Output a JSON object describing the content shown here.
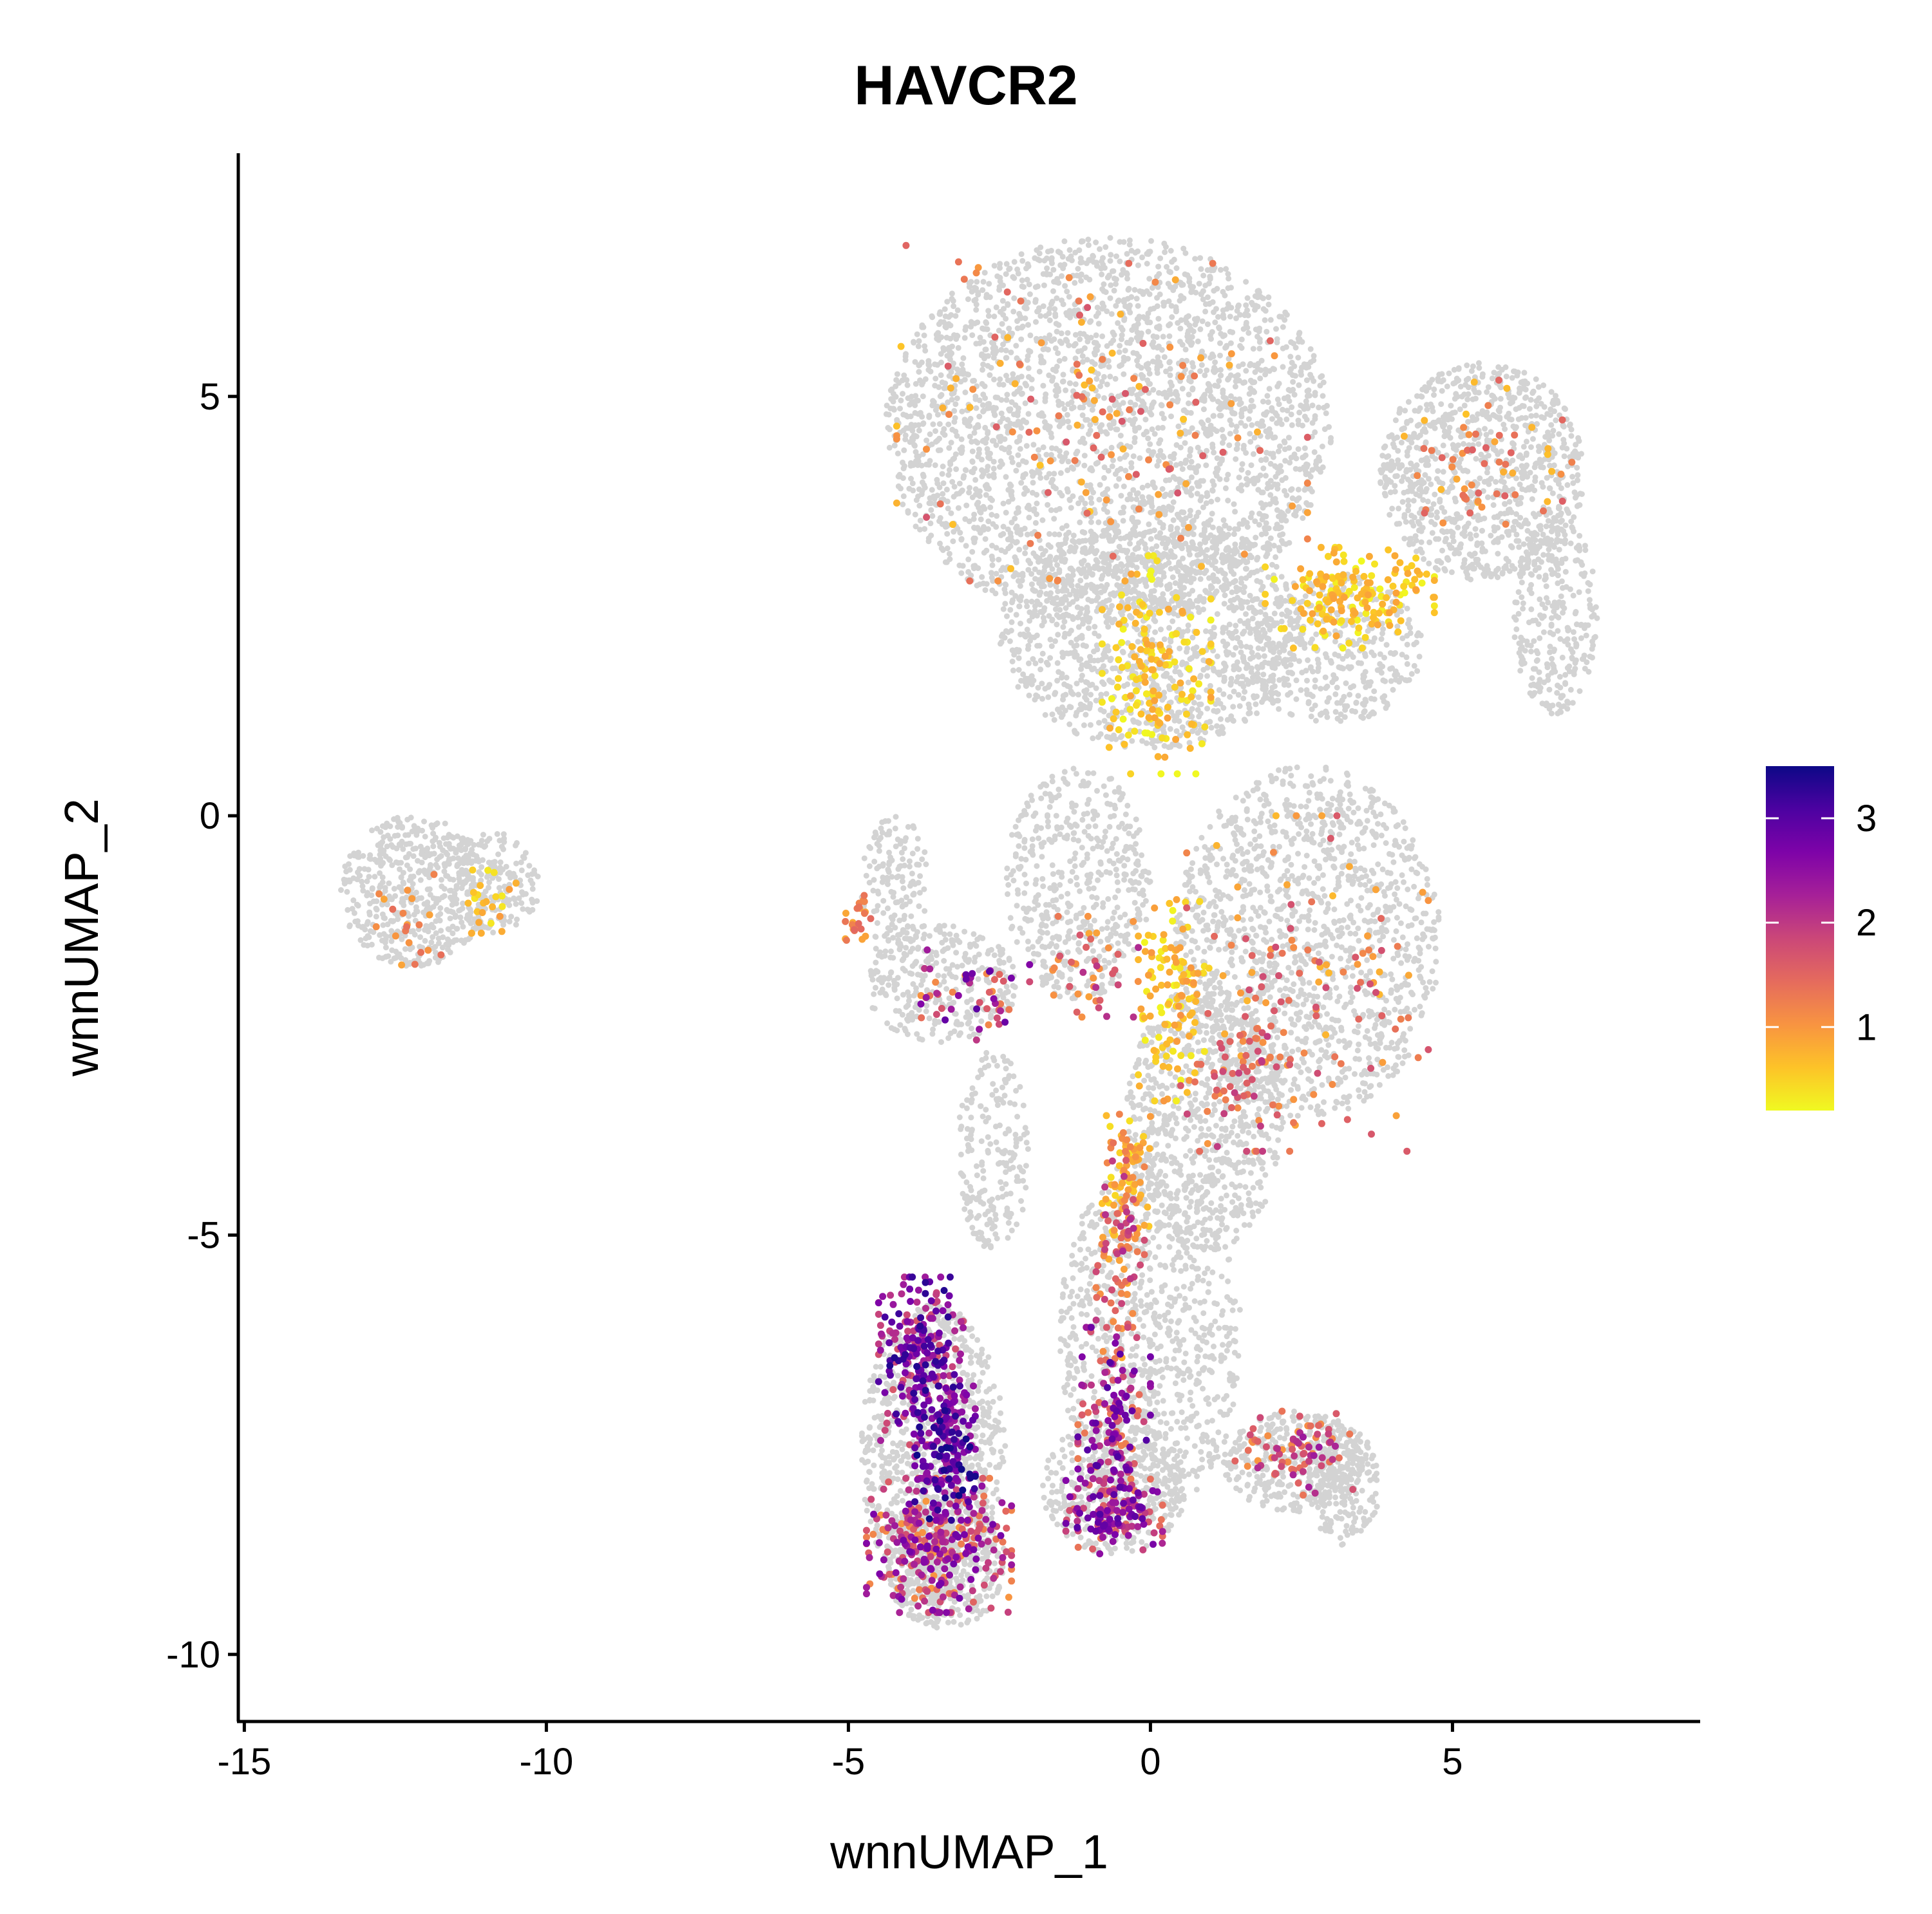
{
  "chart_data": {
    "type": "scatter",
    "title": "HAVCR2",
    "xlabel": "wnnUMAP_1",
    "ylabel": "wnnUMAP_2",
    "xlim": [
      -15.1,
      9.1
    ],
    "ylim": [
      -10.8,
      7.9
    ],
    "xticks": [
      {
        "value": -15,
        "label": "-15"
      },
      {
        "value": -10,
        "label": "-10"
      },
      {
        "value": -5,
        "label": "-5"
      },
      {
        "value": 0,
        "label": "0"
      },
      {
        "value": 5,
        "label": "5"
      }
    ],
    "yticks": [
      {
        "value": -10,
        "label": "-10"
      },
      {
        "value": -5,
        "label": "-5"
      },
      {
        "value": 0,
        "label": "0"
      },
      {
        "value": 5,
        "label": "5"
      }
    ],
    "grid": false,
    "legend": {
      "position": "right",
      "type": "colorbar",
      "range": [
        0.2,
        3.5
      ],
      "ticks": [
        {
          "value": 1,
          "label": "1"
        },
        {
          "value": 2,
          "label": "2"
        },
        {
          "value": 3,
          "label": "3"
        }
      ]
    },
    "colors": {
      "background_cells": "#d3d3d3",
      "colormap": [
        "#f0f921",
        "#fdc328",
        "#f89441",
        "#e56b5d",
        "#cb4778",
        "#a62098",
        "#7e03a8",
        "#4c02a1",
        "#0d0887"
      ]
    },
    "background_regions": [
      {
        "cx": -12.2,
        "cy": -0.9,
        "rx": 1.2,
        "ry": 0.9,
        "n": 500
      },
      {
        "cx": -10.9,
        "cy": -0.8,
        "rx": 0.8,
        "ry": 0.6,
        "n": 200
      },
      {
        "cx": -0.7,
        "cy": 4.6,
        "rx": 3.7,
        "ry": 2.3,
        "n": 2800
      },
      {
        "cx": 0.0,
        "cy": 2.2,
        "rx": 2.5,
        "ry": 1.4,
        "n": 1200
      },
      {
        "cx": 5.5,
        "cy": 4.1,
        "rx": 1.7,
        "ry": 1.3,
        "n": 900
      },
      {
        "cx": 3.0,
        "cy": 2.0,
        "rx": 1.5,
        "ry": 0.9,
        "n": 400
      },
      {
        "cx": 6.7,
        "cy": 2.4,
        "rx": 0.7,
        "ry": 1.2,
        "n": 300
      },
      {
        "cx": 2.6,
        "cy": -1.5,
        "rx": 2.2,
        "ry": 2.1,
        "n": 1400
      },
      {
        "cx": 0.9,
        "cy": -3.6,
        "rx": 1.3,
        "ry": 1.6,
        "n": 700
      },
      {
        "cx": -1.2,
        "cy": -0.8,
        "rx": 1.2,
        "ry": 1.4,
        "n": 500
      },
      {
        "cx": -3.5,
        "cy": -2.0,
        "rx": 1.3,
        "ry": 0.7,
        "n": 300
      },
      {
        "cx": -4.2,
        "cy": -0.8,
        "rx": 0.6,
        "ry": 0.8,
        "n": 150
      },
      {
        "cx": -3.6,
        "cy": -7.6,
        "rx": 1.2,
        "ry": 1.8,
        "n": 900
      },
      {
        "cx": -3.4,
        "cy": -8.9,
        "rx": 1.0,
        "ry": 0.8,
        "n": 400
      },
      {
        "cx": 0.0,
        "cy": -6.2,
        "rx": 1.5,
        "ry": 2.2,
        "n": 900
      },
      {
        "cx": -0.6,
        "cy": -8.0,
        "rx": 1.2,
        "ry": 0.8,
        "n": 400
      },
      {
        "cx": 2.4,
        "cy": -7.7,
        "rx": 1.2,
        "ry": 0.6,
        "n": 350
      },
      {
        "cx": 3.2,
        "cy": -8.0,
        "rx": 0.6,
        "ry": 0.7,
        "n": 200
      },
      {
        "cx": -2.6,
        "cy": -4.0,
        "rx": 0.6,
        "ry": 1.2,
        "n": 200
      }
    ],
    "expression_regions": [
      {
        "cx": 3.3,
        "cy": 2.6,
        "rx": 1.4,
        "ry": 0.6,
        "n": 180,
        "vmin": 0.2,
        "vmax": 0.9
      },
      {
        "cx": 0.1,
        "cy": 1.8,
        "rx": 0.9,
        "ry": 1.3,
        "n": 160,
        "vmin": 0.2,
        "vmax": 0.9
      },
      {
        "cx": 0.4,
        "cy": -2.2,
        "rx": 0.6,
        "ry": 1.2,
        "n": 120,
        "vmin": 0.2,
        "vmax": 1.0
      },
      {
        "cx": -0.4,
        "cy": -4.2,
        "rx": 0.4,
        "ry": 0.8,
        "n": 70,
        "vmin": 0.3,
        "vmax": 1.2
      },
      {
        "cx": -0.8,
        "cy": 4.8,
        "rx": 3.4,
        "ry": 2.0,
        "n": 140,
        "vmin": 0.6,
        "vmax": 1.7
      },
      {
        "cx": 5.6,
        "cy": 4.2,
        "rx": 1.4,
        "ry": 1.0,
        "n": 60,
        "vmin": 0.6,
        "vmax": 1.6
      },
      {
        "cx": 2.6,
        "cy": -2.0,
        "rx": 2.0,
        "ry": 2.0,
        "n": 110,
        "vmin": 0.7,
        "vmax": 1.8
      },
      {
        "cx": -4.8,
        "cy": -1.3,
        "rx": 0.25,
        "ry": 0.35,
        "n": 25,
        "vmin": 0.8,
        "vmax": 1.5
      },
      {
        "cx": -3.8,
        "cy": -6.5,
        "rx": 0.7,
        "ry": 1.0,
        "n": 220,
        "vmin": 1.6,
        "vmax": 3.4
      },
      {
        "cx": -3.4,
        "cy": -7.6,
        "rx": 0.5,
        "ry": 0.8,
        "n": 170,
        "vmin": 2.2,
        "vmax": 3.5
      },
      {
        "cx": -3.5,
        "cy": -8.7,
        "rx": 1.2,
        "ry": 0.8,
        "n": 300,
        "vmin": 1.0,
        "vmax": 2.8
      },
      {
        "cx": -0.6,
        "cy": -7.3,
        "rx": 0.6,
        "ry": 1.2,
        "n": 150,
        "vmin": 1.2,
        "vmax": 3.1
      },
      {
        "cx": -0.6,
        "cy": -8.3,
        "rx": 0.8,
        "ry": 0.5,
        "n": 140,
        "vmin": 1.3,
        "vmax": 3.0
      },
      {
        "cx": -0.5,
        "cy": -5.2,
        "rx": 0.4,
        "ry": 1.3,
        "n": 90,
        "vmin": 0.8,
        "vmax": 2.2
      },
      {
        "cx": 2.4,
        "cy": -7.6,
        "rx": 1.0,
        "ry": 0.5,
        "n": 80,
        "vmin": 1.0,
        "vmax": 2.4
      },
      {
        "cx": -2.9,
        "cy": -2.2,
        "rx": 0.9,
        "ry": 0.6,
        "n": 50,
        "vmin": 0.9,
        "vmax": 3.0
      },
      {
        "cx": -1.0,
        "cy": -1.8,
        "rx": 0.8,
        "ry": 0.6,
        "n": 40,
        "vmin": 0.8,
        "vmax": 2.2
      },
      {
        "cx": -12.3,
        "cy": -1.3,
        "rx": 0.6,
        "ry": 0.6,
        "n": 20,
        "vmin": 0.7,
        "vmax": 1.4
      },
      {
        "cx": -11.0,
        "cy": -1.0,
        "rx": 0.5,
        "ry": 0.4,
        "n": 25,
        "vmin": 0.3,
        "vmax": 1.0
      },
      {
        "cx": 1.5,
        "cy": -3.0,
        "rx": 1.0,
        "ry": 1.0,
        "n": 70,
        "vmin": 1.0,
        "vmax": 2.0
      }
    ]
  }
}
